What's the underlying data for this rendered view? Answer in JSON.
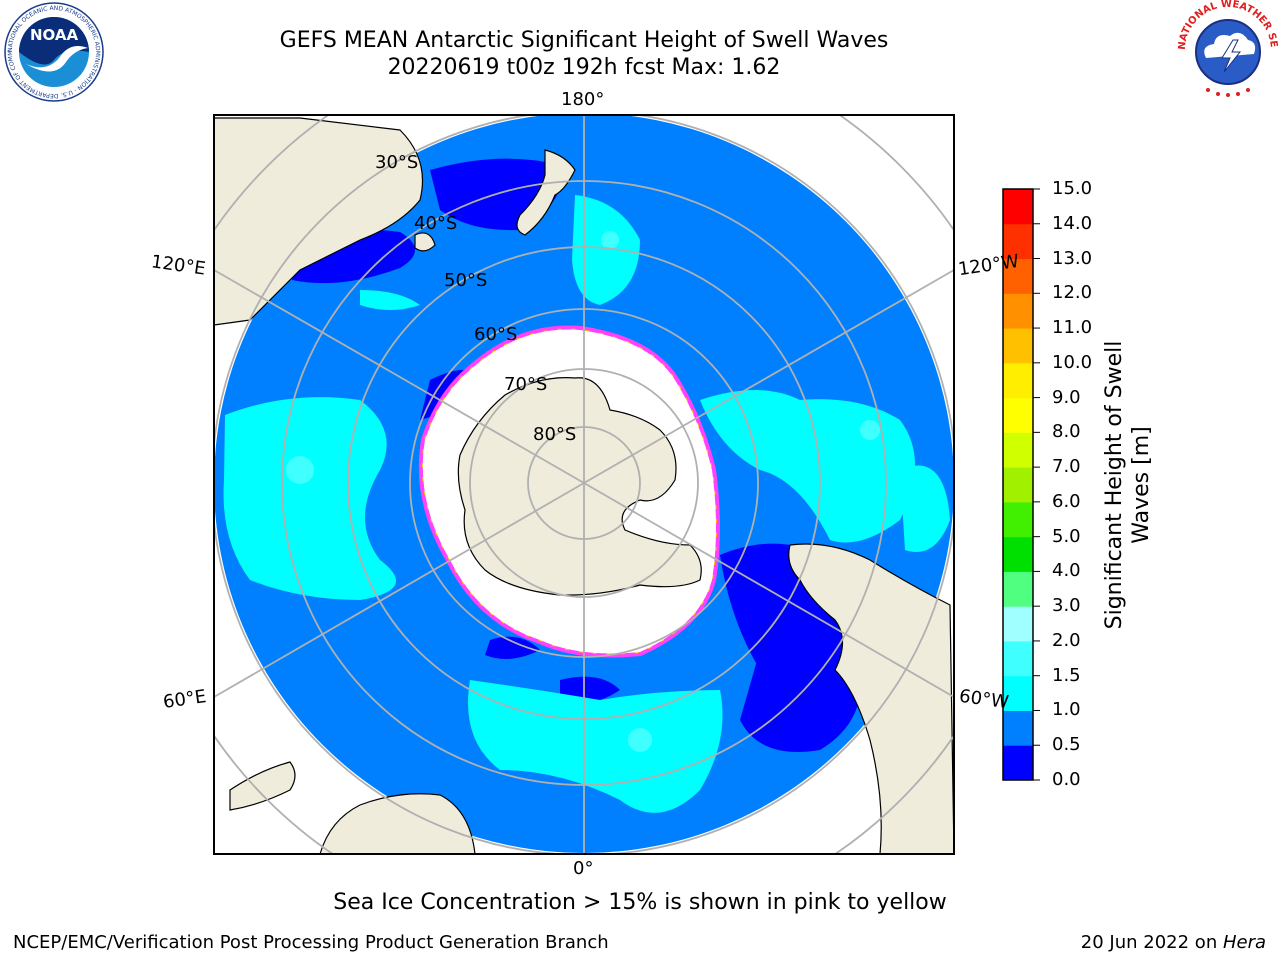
{
  "header": {
    "title_line1": "GEFS MEAN Antarctic Significant Height of Swell Waves",
    "title_line2": "20220619 t00z 192h fcst   Max: 1.62"
  },
  "logos": {
    "noaa_text": "NOAA",
    "noaa_ring_text": "NATIONAL OCEANIC AND ATMOSPHERIC ADMINISTRATION · U.S. DEPARTMENT OF COMMERCE",
    "nws_ring_text": "NATIONAL WEATHER SERVICE"
  },
  "map": {
    "projection": "south-polar-stereographic",
    "longitude_labels": {
      "top": "180°",
      "upper_left": "120°E",
      "upper_right": "120°W",
      "lower_left": "60°E",
      "lower_right": "60°W",
      "bottom": "0°"
    },
    "latitude_labels": [
      "30°S",
      "40°S",
      "50°S",
      "60°S",
      "70°S",
      "80°S"
    ],
    "colors": {
      "land": "#efecdc",
      "ocean_default": "#0080ff",
      "ice": "#ffffff",
      "ice_edge": "#ff40ff",
      "graticule": "#b0b0b0"
    }
  },
  "colorbar": {
    "label": "Significant Height of Swell Waves [m]",
    "ticks": [
      "0.0",
      "0.5",
      "1.0",
      "1.5",
      "2.0",
      "3.0",
      "4.0",
      "5.0",
      "6.0",
      "7.0",
      "8.0",
      "9.0",
      "10.0",
      "11.0",
      "12.0",
      "13.0",
      "14.0",
      "15.0"
    ],
    "colors": [
      "#0000ff",
      "#0080ff",
      "#00ffff",
      "#40ffff",
      "#a0ffff",
      "#50ff80",
      "#00e000",
      "#40f000",
      "#a0f000",
      "#d0ff00",
      "#ffff00",
      "#ffee00",
      "#ffc000",
      "#ff9000",
      "#ff6000",
      "#ff3000",
      "#ff0000"
    ]
  },
  "notes": {
    "sea_ice_note": "Sea Ice Concentration > 15% is shown in pink to yellow"
  },
  "footer": {
    "left": "NCEP/EMC/Verification Post Processing Product Generation Branch",
    "right_date": "20 Jun 2022 on ",
    "right_host": "Hera"
  }
}
